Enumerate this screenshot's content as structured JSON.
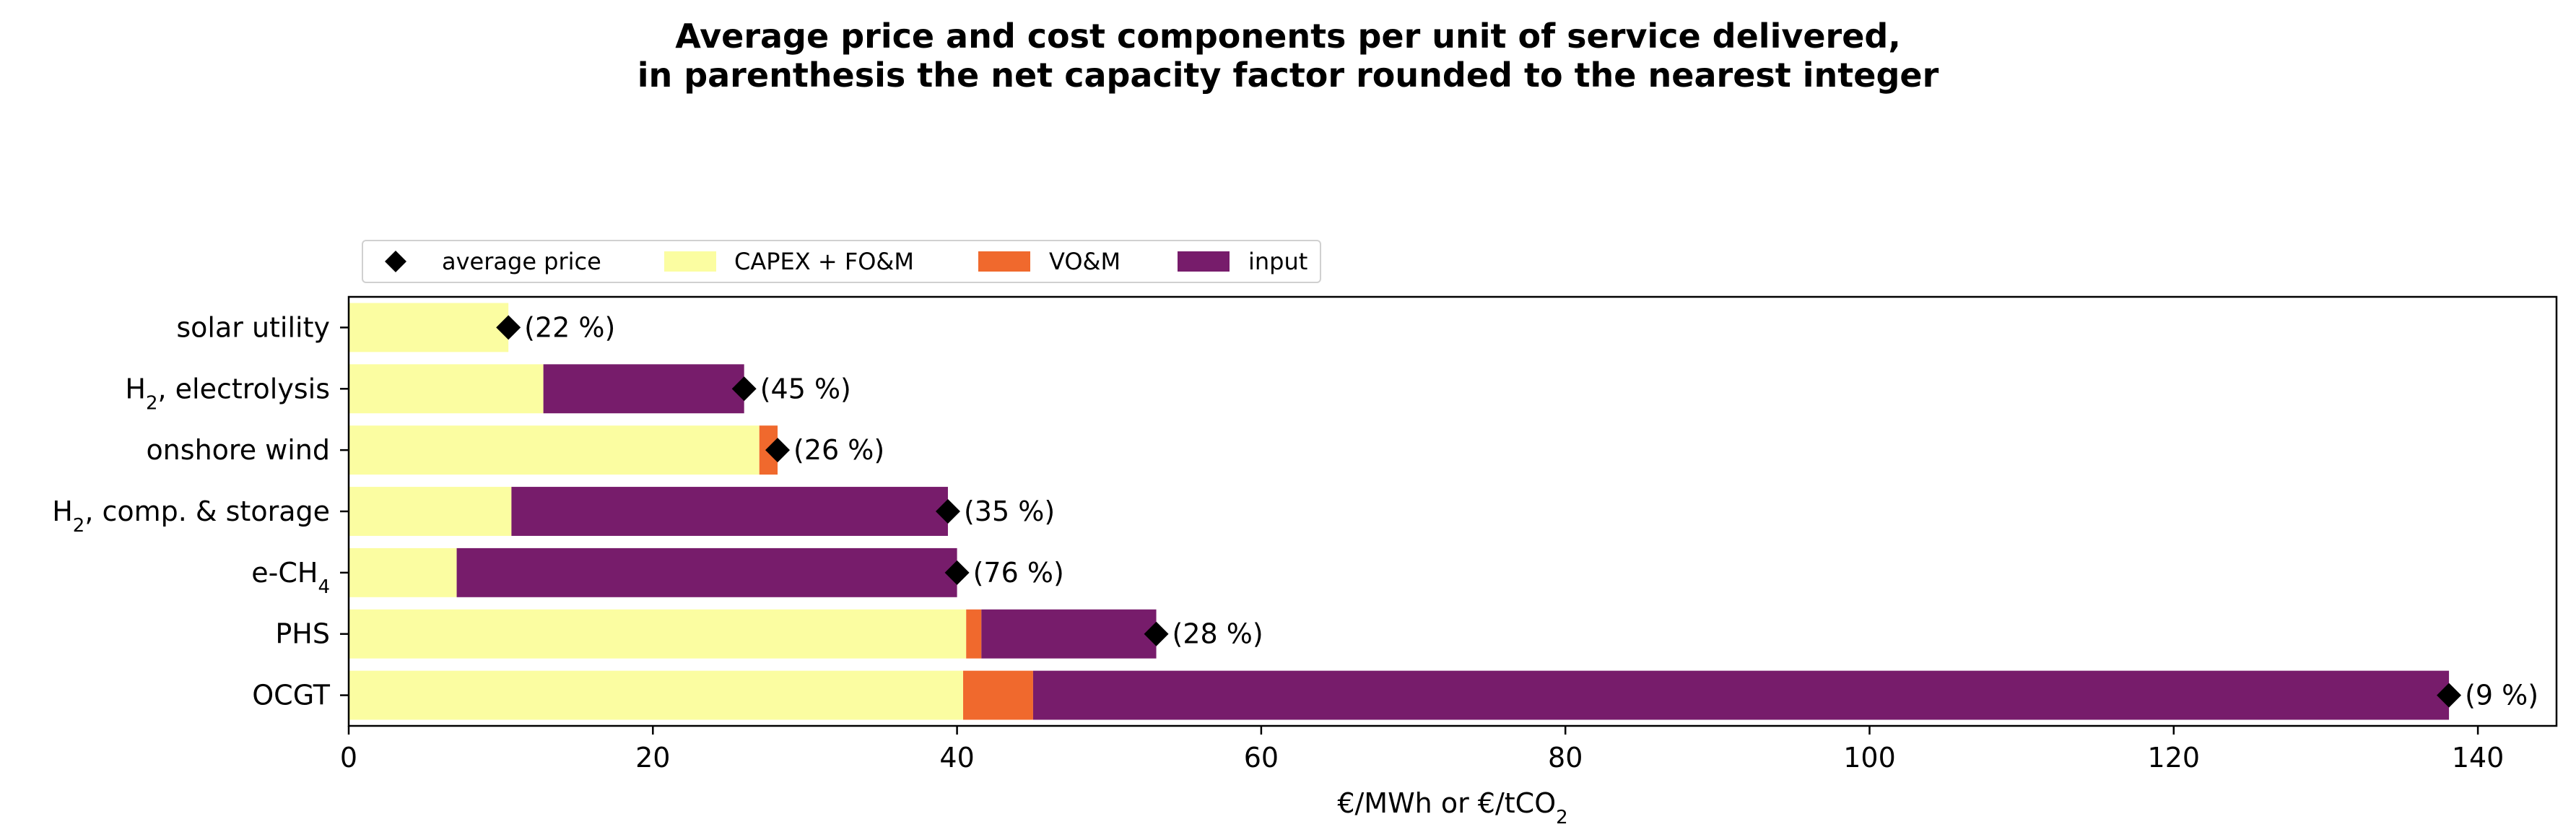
{
  "chart_data": {
    "type": "bar",
    "orientation": "horizontal",
    "stacked": true,
    "title_lines": [
      "Average price and cost components per unit of service delivered,",
      "in parenthesis the net capacity factor rounded to the nearest integer"
    ],
    "xlabel": "€/MWh or €/tCO₂",
    "xlim": [
      0,
      145
    ],
    "xticks": [
      0,
      20,
      40,
      60,
      80,
      100,
      120,
      140
    ],
    "categories": [
      "solar utility",
      "H₂, electrolysis",
      "onshore wind",
      "H₂, comp. & storage",
      "e-CH₄",
      "PHS",
      "OCGT"
    ],
    "series": [
      {
        "name": "CAPEX + FO&M",
        "color": "#fbfda1",
        "values": [
          10.5,
          12.8,
          27.0,
          10.7,
          7.1,
          40.6,
          40.4
        ]
      },
      {
        "name": "VO&M",
        "color": "#f0692d",
        "values": [
          0,
          0,
          1.2,
          0,
          0,
          1.0,
          4.6
        ]
      },
      {
        "name": "input",
        "color": "#771c6b",
        "values": [
          0,
          13.2,
          0,
          28.7,
          32.9,
          11.5,
          93.1
        ]
      }
    ],
    "average_price": {
      "name": "average price",
      "marker": "diamond",
      "color": "#000000",
      "values": [
        10.5,
        26.0,
        28.2,
        39.4,
        40.0,
        53.1,
        138.1
      ]
    },
    "capacity_factor_labels": [
      "(22 %)",
      "(45 %)",
      "(26 %)",
      "(35 %)",
      "(76 %)",
      "(28 %)",
      "(9 %)"
    ],
    "legend_position": "upper left, above plot",
    "grid": false
  }
}
